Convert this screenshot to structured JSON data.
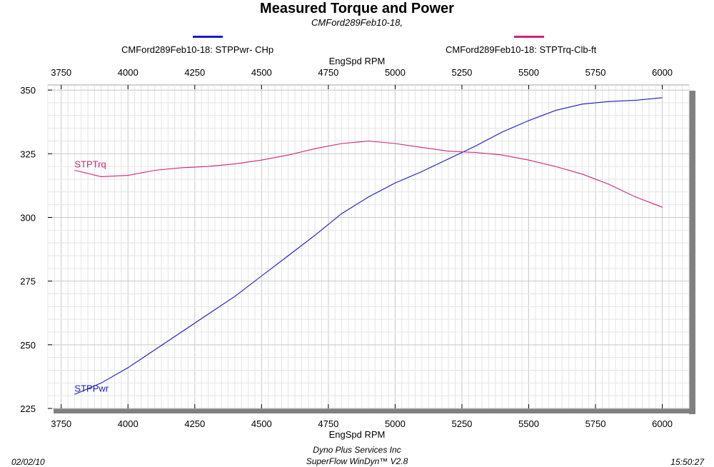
{
  "chart_data": {
    "type": "line",
    "title": "Measured Torque and Power",
    "subtitle": "CMFord289Feb10-18,",
    "xlabel": "EngSpd  RPM",
    "xlim": [
      3700,
      6100
    ],
    "ylim": [
      225,
      352
    ],
    "x_ticks": [
      3750,
      4000,
      4250,
      4500,
      4750,
      5000,
      5250,
      5500,
      5750,
      6000
    ],
    "y_ticks": [
      225,
      250,
      275,
      300,
      325,
      350
    ],
    "grid": true,
    "x": [
      3800,
      3900,
      4000,
      4100,
      4200,
      4300,
      4400,
      4500,
      4600,
      4700,
      4800,
      4900,
      5000,
      5100,
      5200,
      5300,
      5400,
      5500,
      5600,
      5700,
      5800,
      5900,
      6000
    ],
    "series": [
      {
        "name": "CMFord289Feb10-18: STPPwr- CHp",
        "curve_label": "STPPwr",
        "color": "#1a1acc",
        "values": [
          230.5,
          235.0,
          241.0,
          248.0,
          255.0,
          262.0,
          269.0,
          277.0,
          285.0,
          293.0,
          301.5,
          308.0,
          313.5,
          318.0,
          323.0,
          328.0,
          333.5,
          338.0,
          342.0,
          344.5,
          345.5,
          346.0,
          347.0
        ]
      },
      {
        "name": "CMFord289Feb10-18: STPTrq-Clb-ft",
        "curve_label": "STPTrq",
        "color": "#d1207a",
        "values": [
          318.5,
          316.0,
          316.5,
          318.5,
          319.5,
          320.0,
          321.0,
          322.5,
          324.5,
          327.0,
          329.0,
          330.0,
          329.0,
          327.5,
          326.0,
          325.5,
          324.5,
          322.5,
          320.0,
          317.0,
          313.0,
          308.0,
          304.0
        ]
      }
    ]
  },
  "footer": {
    "date": "02/02/10",
    "company": "Dyno Plus Services Inc",
    "software": "SuperFlow WinDyn™ V2.8",
    "time": "15:50:27"
  }
}
